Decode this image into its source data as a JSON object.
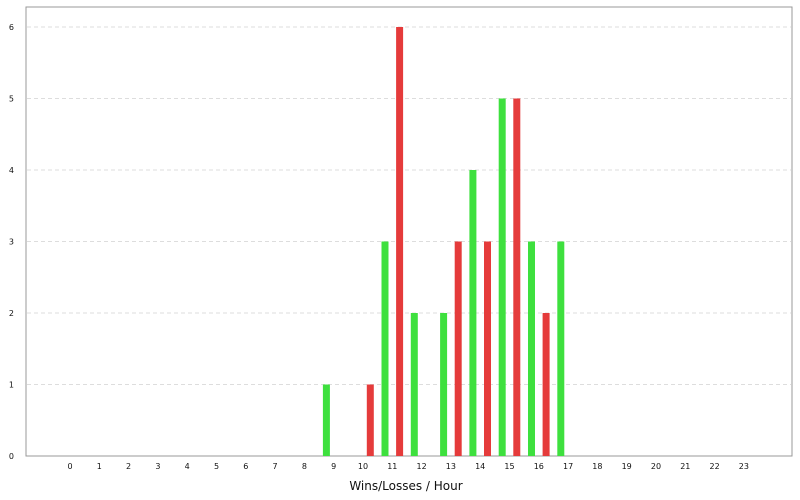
{
  "chart_data": {
    "type": "bar",
    "title": "",
    "xlabel": "Wins/Losses / Hour",
    "ylabel": "",
    "ylim": [
      0,
      6
    ],
    "yticks": [
      0,
      1,
      2,
      3,
      4,
      5,
      6
    ],
    "categories": [
      "0",
      "1",
      "2",
      "3",
      "4",
      "5",
      "6",
      "7",
      "8",
      "9",
      "10",
      "11",
      "12",
      "13",
      "14",
      "15",
      "16",
      "17",
      "18",
      "19",
      "20",
      "21",
      "22",
      "23"
    ],
    "series": [
      {
        "color": "#3ee03e",
        "values": [
          0,
          0,
          0,
          0,
          0,
          0,
          0,
          0,
          0,
          1,
          0,
          3,
          2,
          2,
          4,
          5,
          3,
          3,
          0,
          0,
          0,
          0,
          0,
          0
        ]
      },
      {
        "color": "#e53b3b",
        "values": [
          0,
          0,
          0,
          0,
          0,
          0,
          0,
          0,
          0,
          0,
          1,
          6,
          0,
          3,
          3,
          5,
          2,
          0,
          0,
          0,
          0,
          0,
          0,
          0
        ]
      }
    ],
    "grid": true,
    "legend": "none"
  }
}
